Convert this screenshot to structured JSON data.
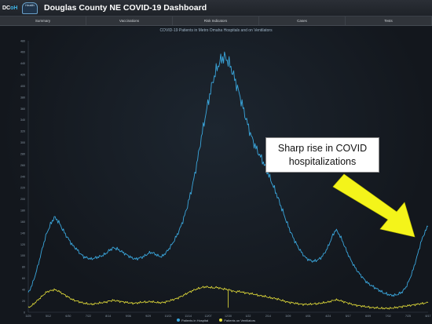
{
  "app": {
    "logo_text": "DC",
    "logo_accent": "oH",
    "badge_text": "Health",
    "title": "Douglas County NE COVID-19 Dashboard"
  },
  "tabs": [
    {
      "label": "Summary"
    },
    {
      "label": "Vaccinations"
    },
    {
      "label": "Risk Indicators"
    },
    {
      "label": "Cases"
    },
    {
      "label": "Tests"
    }
  ],
  "colors": {
    "hospital_series": "#3aa6dc",
    "ventilator_series": "#e6e03a",
    "arrow": "#f4f41a"
  },
  "annotation": {
    "line1": "Sharp rise in COVID",
    "line2": "hospitalizations"
  },
  "chart_data": {
    "type": "line",
    "title": "COVID-19 Patients in Metro Omaha Hospitals and on Ventilators",
    "xlabel": "",
    "ylabel": "",
    "ylim": [
      0,
      480
    ],
    "y_ticks": [
      "0",
      "20",
      "40",
      "60",
      "80",
      "100",
      "120",
      "140",
      "160",
      "180",
      "200",
      "220",
      "240",
      "260",
      "280",
      "300",
      "320",
      "340",
      "360",
      "380",
      "400",
      "420",
      "440",
      "460",
      "480"
    ],
    "x_ticks": [
      "3/25",
      "5/12",
      "6/30",
      "7/22",
      "8/14",
      "9/06",
      "9/29",
      "10/21",
      "11/14",
      "12/07",
      "12/30",
      "1/22",
      "2/14",
      "3/09",
      "4/01",
      "4/24",
      "5/17",
      "6/09",
      "7/02",
      "7/25",
      "8/17"
    ],
    "series": [
      {
        "name": "Patients in Hospital",
        "color": "#3aa6dc",
        "points": [
          [
            0,
            34
          ],
          [
            1,
            48
          ],
          [
            2,
            68
          ],
          [
            3,
            92
          ],
          [
            4,
            118
          ],
          [
            5,
            140
          ],
          [
            6,
            155
          ],
          [
            7,
            168
          ],
          [
            8,
            162
          ],
          [
            9,
            150
          ],
          [
            10,
            138
          ],
          [
            11,
            128
          ],
          [
            12,
            118
          ],
          [
            13,
            112
          ],
          [
            14,
            104
          ],
          [
            15,
            98
          ],
          [
            16,
            96
          ],
          [
            17,
            94
          ],
          [
            18,
            96
          ],
          [
            19,
            98
          ],
          [
            20,
            100
          ],
          [
            21,
            104
          ],
          [
            22,
            110
          ],
          [
            23,
            114
          ],
          [
            24,
            112
          ],
          [
            25,
            108
          ],
          [
            26,
            104
          ],
          [
            27,
            100
          ],
          [
            28,
            96
          ],
          [
            29,
            94
          ],
          [
            30,
            96
          ],
          [
            31,
            98
          ],
          [
            32,
            102
          ],
          [
            33,
            106
          ],
          [
            34,
            104
          ],
          [
            35,
            100
          ],
          [
            36,
            98
          ],
          [
            37,
            104
          ],
          [
            38,
            112
          ],
          [
            39,
            122
          ],
          [
            40,
            134
          ],
          [
            41,
            148
          ],
          [
            42,
            166
          ],
          [
            43,
            188
          ],
          [
            44,
            214
          ],
          [
            45,
            244
          ],
          [
            46,
            280
          ],
          [
            47,
            318
          ],
          [
            48,
            352
          ],
          [
            49,
            384
          ],
          [
            50,
            412
          ],
          [
            51,
            432
          ],
          [
            52,
            446
          ],
          [
            53,
            452
          ],
          [
            54,
            444
          ],
          [
            55,
            428
          ],
          [
            56,
            408
          ],
          [
            57,
            386
          ],
          [
            58,
            362
          ],
          [
            59,
            338
          ],
          [
            60,
            316
          ],
          [
            61,
            298
          ],
          [
            62,
            284
          ],
          [
            63,
            272
          ],
          [
            64,
            258
          ],
          [
            65,
            242
          ],
          [
            66,
            226
          ],
          [
            67,
            210
          ],
          [
            68,
            192
          ],
          [
            69,
            174
          ],
          [
            70,
            156
          ],
          [
            71,
            140
          ],
          [
            72,
            126
          ],
          [
            73,
            114
          ],
          [
            74,
            104
          ],
          [
            75,
            96
          ],
          [
            76,
            92
          ],
          [
            77,
            90
          ],
          [
            78,
            92
          ],
          [
            79,
            96
          ],
          [
            80,
            104
          ],
          [
            81,
            116
          ],
          [
            82,
            132
          ],
          [
            83,
            146
          ],
          [
            84,
            138
          ],
          [
            85,
            124
          ],
          [
            86,
            108
          ],
          [
            87,
            94
          ],
          [
            88,
            82
          ],
          [
            89,
            72
          ],
          [
            90,
            64
          ],
          [
            91,
            56
          ],
          [
            92,
            50
          ],
          [
            93,
            46
          ],
          [
            94,
            42
          ],
          [
            95,
            38
          ],
          [
            96,
            34
          ],
          [
            97,
            32
          ],
          [
            98,
            30
          ],
          [
            99,
            30
          ],
          [
            100,
            32
          ],
          [
            101,
            36
          ],
          [
            102,
            44
          ],
          [
            103,
            58
          ],
          [
            104,
            76
          ],
          [
            105,
            98
          ],
          [
            106,
            122
          ],
          [
            107,
            140
          ],
          [
            108,
            152
          ]
        ]
      },
      {
        "name": "Patients on Ventilators",
        "color": "#e6e03a",
        "points": [
          [
            0,
            8
          ],
          [
            1,
            12
          ],
          [
            2,
            18
          ],
          [
            3,
            24
          ],
          [
            4,
            30
          ],
          [
            5,
            36
          ],
          [
            6,
            38
          ],
          [
            7,
            40
          ],
          [
            8,
            38
          ],
          [
            9,
            34
          ],
          [
            10,
            30
          ],
          [
            11,
            26
          ],
          [
            12,
            22
          ],
          [
            13,
            20
          ],
          [
            14,
            18
          ],
          [
            15,
            16
          ],
          [
            16,
            15
          ],
          [
            17,
            14
          ],
          [
            18,
            15
          ],
          [
            19,
            16
          ],
          [
            20,
            17
          ],
          [
            21,
            18
          ],
          [
            22,
            20
          ],
          [
            23,
            21
          ],
          [
            24,
            20
          ],
          [
            25,
            19
          ],
          [
            26,
            18
          ],
          [
            27,
            17
          ],
          [
            28,
            16
          ],
          [
            29,
            16
          ],
          [
            30,
            17
          ],
          [
            31,
            18
          ],
          [
            32,
            18
          ],
          [
            33,
            19
          ],
          [
            34,
            18
          ],
          [
            35,
            17
          ],
          [
            36,
            17
          ],
          [
            37,
            18
          ],
          [
            38,
            20
          ],
          [
            39,
            22
          ],
          [
            40,
            24
          ],
          [
            41,
            27
          ],
          [
            42,
            30
          ],
          [
            43,
            34
          ],
          [
            44,
            37
          ],
          [
            45,
            40
          ],
          [
            46,
            42
          ],
          [
            47,
            44
          ],
          [
            48,
            45
          ],
          [
            49,
            44
          ],
          [
            50,
            43
          ],
          [
            51,
            44
          ],
          [
            52,
            42
          ],
          [
            53,
            41
          ],
          [
            54,
            40
          ],
          [
            55,
            38
          ],
          [
            56,
            36
          ],
          [
            57,
            37
          ],
          [
            58,
            35
          ],
          [
            59,
            34
          ],
          [
            60,
            33
          ],
          [
            61,
            32
          ],
          [
            62,
            30
          ],
          [
            63,
            29
          ],
          [
            64,
            28
          ],
          [
            65,
            26
          ],
          [
            66,
            25
          ],
          [
            67,
            24
          ],
          [
            68,
            22
          ],
          [
            69,
            20
          ],
          [
            70,
            18
          ],
          [
            71,
            17
          ],
          [
            72,
            16
          ],
          [
            73,
            15
          ],
          [
            74,
            14
          ],
          [
            75,
            14
          ],
          [
            76,
            14
          ],
          [
            77,
            15
          ],
          [
            78,
            15
          ],
          [
            79,
            16
          ],
          [
            80,
            17
          ],
          [
            81,
            18
          ],
          [
            82,
            20
          ],
          [
            83,
            22
          ],
          [
            84,
            21
          ],
          [
            85,
            19
          ],
          [
            86,
            17
          ],
          [
            87,
            15
          ],
          [
            88,
            13
          ],
          [
            89,
            12
          ],
          [
            90,
            11
          ],
          [
            91,
            10
          ],
          [
            92,
            9
          ],
          [
            93,
            8
          ],
          [
            94,
            8
          ],
          [
            95,
            7
          ],
          [
            96,
            7
          ],
          [
            97,
            7
          ],
          [
            98,
            7
          ],
          [
            99,
            8
          ],
          [
            100,
            9
          ],
          [
            101,
            10
          ],
          [
            102,
            11
          ],
          [
            103,
            12
          ],
          [
            104,
            13
          ],
          [
            105,
            14
          ],
          [
            106,
            15
          ],
          [
            107,
            16
          ],
          [
            108,
            17
          ]
        ]
      }
    ],
    "legend_position": "bottom-center",
    "grid": false
  }
}
